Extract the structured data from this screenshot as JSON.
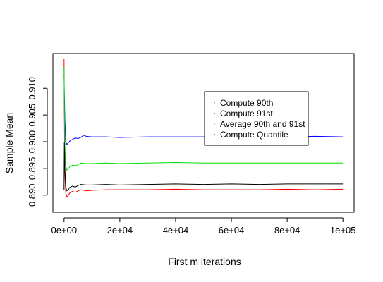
{
  "chart_data": {
    "type": "line",
    "title": "",
    "xlabel": "First m iterations",
    "ylabel": "Sample Mean",
    "xlim": [
      -4000,
      104000
    ],
    "ylim": [
      0.8868,
      0.9165
    ],
    "x_ticks": [
      0,
      20000,
      40000,
      60000,
      80000,
      100000
    ],
    "x_tick_labels": [
      "0e+00",
      "2e+04",
      "4e+04",
      "6e+04",
      "8e+04",
      "1e+05"
    ],
    "y_ticks": [
      0.89,
      0.895,
      0.9,
      0.905,
      0.91
    ],
    "y_tick_labels": [
      "0.890",
      "0.895",
      "0.900",
      "0.905",
      "0.910"
    ],
    "grid": false,
    "legend_position": "top-right",
    "series": [
      {
        "name": "Compute 90th",
        "color": "#ff0000",
        "points": [
          [
            1,
            0.9155
          ],
          [
            100,
            0.905
          ],
          [
            300,
            0.894
          ],
          [
            600,
            0.8905
          ],
          [
            1000,
            0.8897
          ],
          [
            1500,
            0.8899
          ],
          [
            2000,
            0.8904
          ],
          [
            3000,
            0.8907
          ],
          [
            4000,
            0.8905
          ],
          [
            5000,
            0.8908
          ],
          [
            6000,
            0.891
          ],
          [
            8000,
            0.8908
          ],
          [
            10000,
            0.8909
          ],
          [
            15000,
            0.891
          ],
          [
            20000,
            0.891
          ],
          [
            30000,
            0.891
          ],
          [
            40000,
            0.8911
          ],
          [
            50000,
            0.891
          ],
          [
            60000,
            0.891
          ],
          [
            70000,
            0.891
          ],
          [
            80000,
            0.8911
          ],
          [
            90000,
            0.891
          ],
          [
            100000,
            0.8911
          ]
        ],
        "final_value": 0.8911
      },
      {
        "name": "Compute 91st",
        "color": "#0000ff",
        "points": [
          [
            1,
            0.9125
          ],
          [
            100,
            0.909
          ],
          [
            300,
            0.904
          ],
          [
            600,
            0.9
          ],
          [
            1000,
            0.8995
          ],
          [
            1500,
            0.8998
          ],
          [
            2000,
            0.9001
          ],
          [
            3000,
            0.9004
          ],
          [
            4000,
            0.9007
          ],
          [
            5000,
            0.9006
          ],
          [
            6000,
            0.9008
          ],
          [
            7000,
            0.9012
          ],
          [
            8000,
            0.901
          ],
          [
            10000,
            0.9009
          ],
          [
            15000,
            0.9009
          ],
          [
            20000,
            0.9008
          ],
          [
            30000,
            0.9009
          ],
          [
            40000,
            0.9009
          ],
          [
            50000,
            0.9009
          ],
          [
            60000,
            0.9009
          ],
          [
            70000,
            0.9009
          ],
          [
            80000,
            0.9009
          ],
          [
            90000,
            0.901
          ],
          [
            100000,
            0.9009
          ]
        ],
        "final_value": 0.9009
      },
      {
        "name": "Average 90th and 91st",
        "color": "#00dd00",
        "points": [
          [
            1,
            0.914
          ],
          [
            100,
            0.907
          ],
          [
            300,
            0.899
          ],
          [
            600,
            0.8955
          ],
          [
            1000,
            0.8947
          ],
          [
            1500,
            0.8949
          ],
          [
            2000,
            0.8953
          ],
          [
            3000,
            0.8956
          ],
          [
            4000,
            0.8955
          ],
          [
            5000,
            0.8957
          ],
          [
            6000,
            0.896
          ],
          [
            8000,
            0.8959
          ],
          [
            10000,
            0.8959
          ],
          [
            15000,
            0.896
          ],
          [
            20000,
            0.8959
          ],
          [
            30000,
            0.896
          ],
          [
            40000,
            0.8961
          ],
          [
            50000,
            0.896
          ],
          [
            60000,
            0.896
          ],
          [
            70000,
            0.896
          ],
          [
            80000,
            0.896
          ],
          [
            90000,
            0.896
          ],
          [
            100000,
            0.896
          ]
        ],
        "final_value": 0.896
      },
      {
        "name": "Compute Quantile",
        "color": "#000000",
        "points": [
          [
            1,
            0.891
          ],
          [
            100,
            0.9
          ],
          [
            300,
            0.895
          ],
          [
            600,
            0.8915
          ],
          [
            1000,
            0.8908
          ],
          [
            1500,
            0.891
          ],
          [
            2000,
            0.8914
          ],
          [
            3000,
            0.8917
          ],
          [
            4000,
            0.8915
          ],
          [
            5000,
            0.8918
          ],
          [
            6000,
            0.892
          ],
          [
            8000,
            0.8919
          ],
          [
            10000,
            0.8919
          ],
          [
            15000,
            0.892
          ],
          [
            20000,
            0.8919
          ],
          [
            30000,
            0.892
          ],
          [
            40000,
            0.8921
          ],
          [
            50000,
            0.892
          ],
          [
            60000,
            0.8921
          ],
          [
            70000,
            0.892
          ],
          [
            80000,
            0.8921
          ],
          [
            90000,
            0.8921
          ],
          [
            100000,
            0.8921
          ]
        ],
        "final_value": 0.8921
      }
    ]
  }
}
